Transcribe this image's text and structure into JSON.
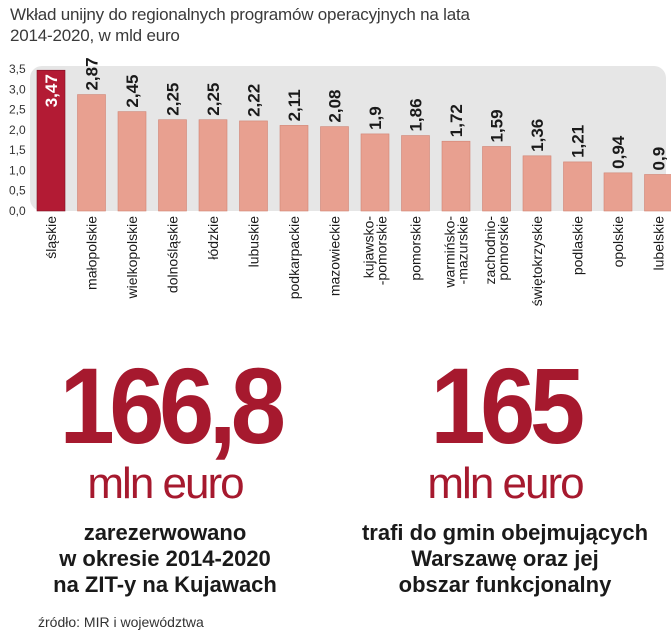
{
  "title_lines": [
    "Wkład unijny do regionalnych programów operacyjnych na lata",
    "2014-2020, w mld euro"
  ],
  "colors": {
    "bar": "#e8a090",
    "highlight_bar": "#b31b34",
    "band": "#e6e6e6",
    "accent": "#a6192e"
  },
  "chart_data": {
    "type": "bar",
    "title": "Wkład unijny do regionalnych programów operacyjnych na lata 2014-2020, w mld euro",
    "categories": [
      "śląskie",
      "małopolskie",
      "wielkopolskie",
      "dolnośląskie",
      "łódzkie",
      "lubuskie",
      "podkarpackie",
      "mazowieckie",
      "kujawsko-\n-pomorskie",
      "pomorskie",
      "warmińsko-\n-mazurskie",
      "zachodnio-\npomorskie",
      "świętokrzyskie",
      "podlaskie",
      "opolskie",
      "lubelskie"
    ],
    "values": [
      3.47,
      2.87,
      2.45,
      2.25,
      2.25,
      2.22,
      2.11,
      2.08,
      1.9,
      1.86,
      1.72,
      1.59,
      1.36,
      1.21,
      0.94,
      0.9
    ],
    "value_labels": [
      "3,47",
      "2,87",
      "2,45",
      "2,25",
      "2,25",
      "2,22",
      "2,11",
      "2,08",
      "1,9",
      "1,86",
      "1,72",
      "1,59",
      "1,36",
      "1,21",
      "0,94",
      "0,9"
    ],
    "highlight_index": 0,
    "yticks": [
      "0,0",
      "0,5",
      "1,0",
      "1,5",
      "2,0",
      "2,5",
      "3,0",
      "3,5"
    ],
    "ylim": [
      0,
      3.5
    ]
  },
  "stats": [
    {
      "number": "166,8",
      "unit": "mln euro",
      "desc_lines": [
        "zarezerwowano",
        "w okresie 2014-2020",
        "na ZIT-y na Kujawach"
      ]
    },
    {
      "number": "165",
      "unit": "mln euro",
      "desc_lines": [
        "trafi do gmin obejmujących",
        "Warszawę oraz jej",
        "obszar funkcjonalny"
      ]
    }
  ],
  "source": "źródło: MIR i województwa"
}
